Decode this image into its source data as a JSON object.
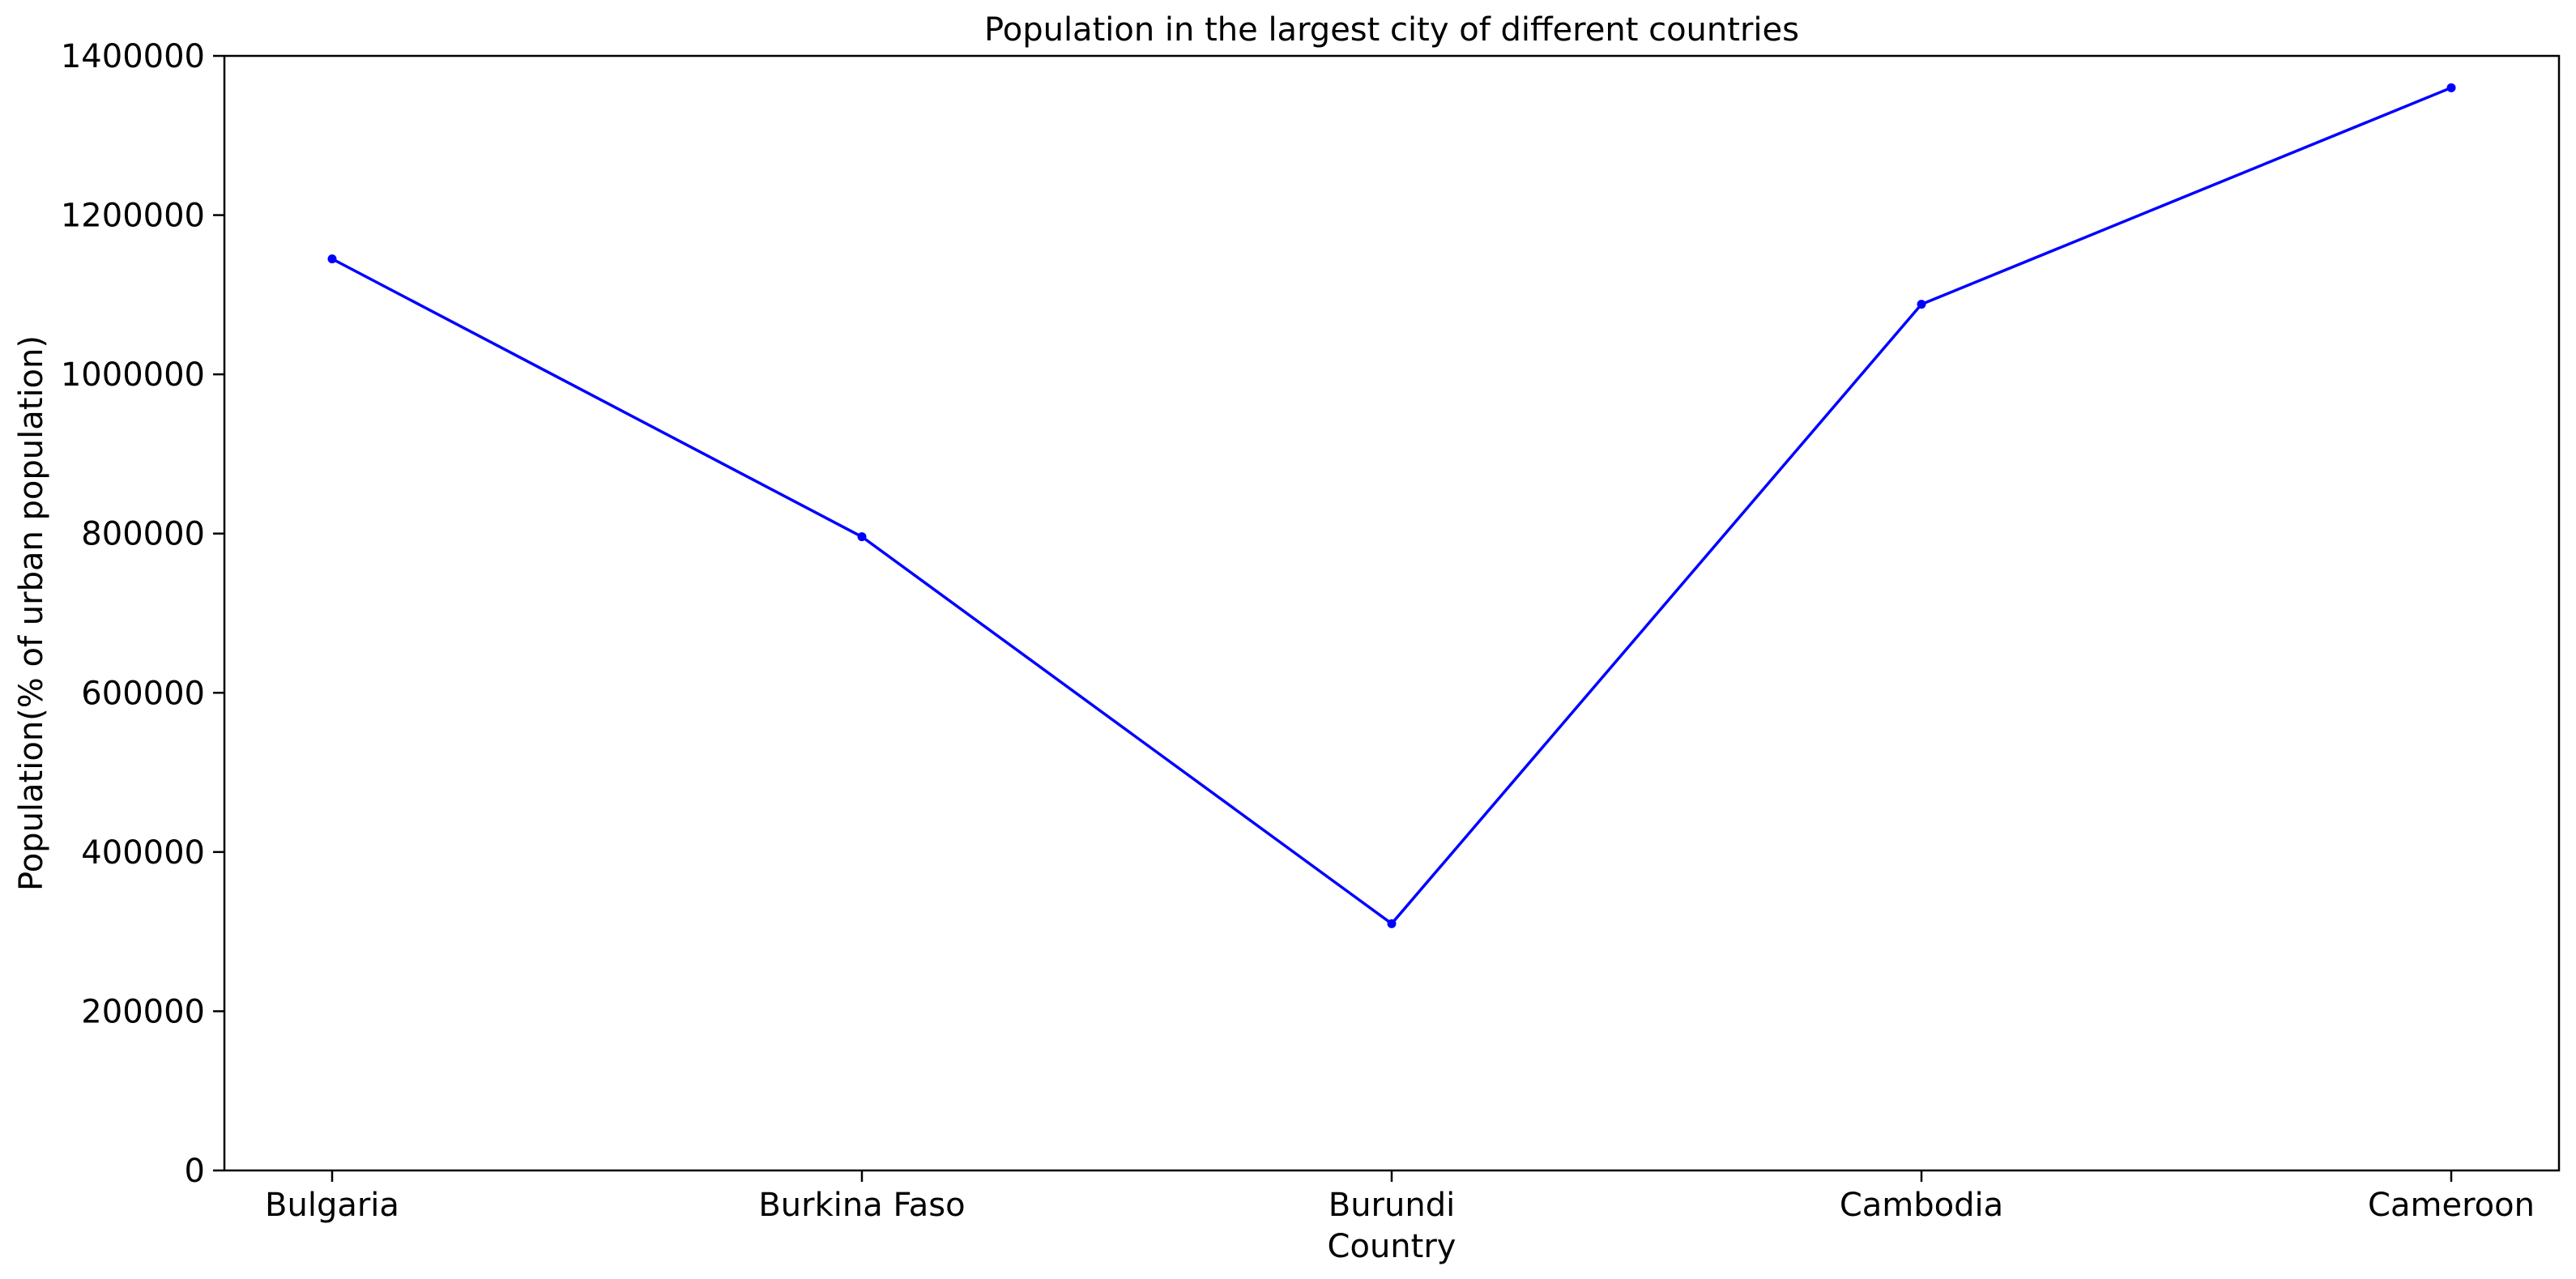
{
  "chart_data": {
    "type": "line",
    "title": "Population in the largest city of different countries",
    "xlabel": "Country",
    "ylabel": "Population(% of urban population)",
    "categories": [
      "Bulgaria",
      "Burkina Faso",
      "Burundi",
      "Cambodia",
      "Cameroon"
    ],
    "series": [
      {
        "values": [
          1145000,
          796000,
          310000,
          1088000,
          1360000
        ],
        "color": "#0000ff",
        "marker": "point"
      }
    ],
    "ylim": [
      0,
      1400000
    ],
    "yticks": [
      0,
      200000,
      400000,
      600000,
      800000,
      1000000,
      1200000,
      1400000
    ],
    "ytick_labels": [
      "0",
      "200000",
      "400000",
      "600000",
      "800000",
      "1000000",
      "1200000",
      "1400000"
    ],
    "grid": false,
    "legend": false
  }
}
